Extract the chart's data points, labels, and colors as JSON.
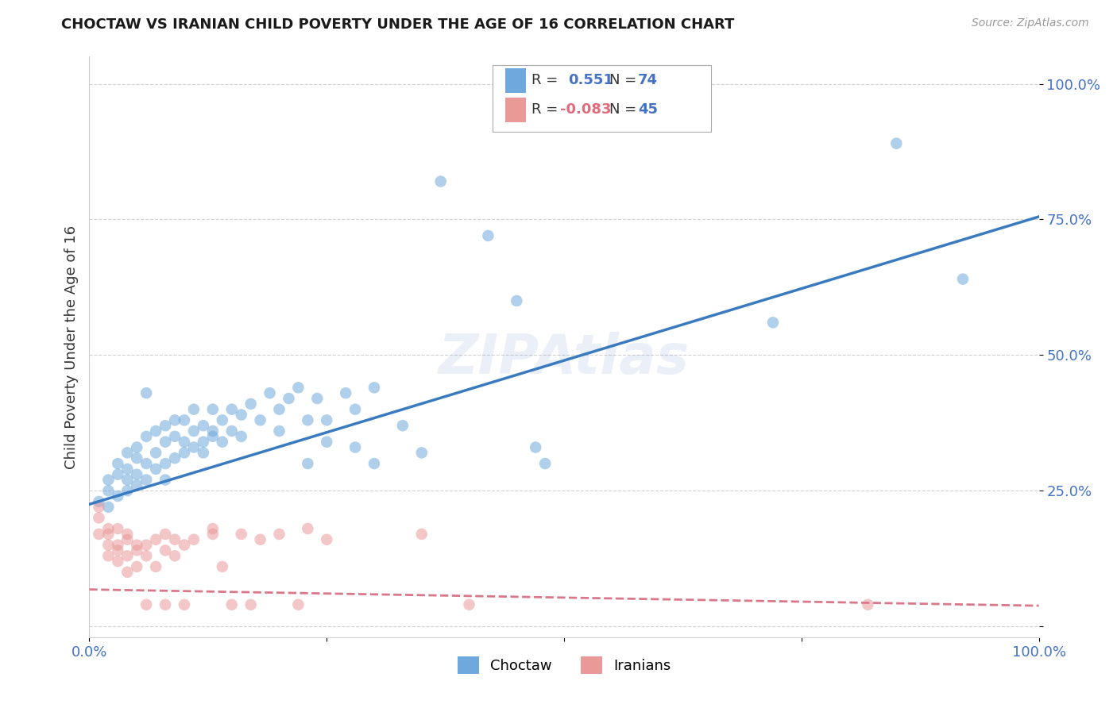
{
  "title": "CHOCTAW VS IRANIAN CHILD POVERTY UNDER THE AGE OF 16 CORRELATION CHART",
  "source": "Source: ZipAtlas.com",
  "ylabel": "Child Poverty Under the Age of 16",
  "xlim": [
    0,
    1.0
  ],
  "ylim": [
    -0.02,
    1.05
  ],
  "choctaw_color": "#6fa8dc",
  "iranian_color": "#ea9999",
  "choctaw_line_color": "#3a7abf",
  "iranian_line_color": "#d9788a",
  "legend_R_choctaw": "0.551",
  "legend_N_choctaw": "74",
  "legend_R_iranian": "-0.083",
  "legend_N_iranian": "45",
  "watermark": "ZIPAtlas",
  "background_color": "#ffffff",
  "grid_color": "#cccccc",
  "choctaw_points": [
    [
      0.01,
      0.23
    ],
    [
      0.02,
      0.27
    ],
    [
      0.02,
      0.22
    ],
    [
      0.02,
      0.25
    ],
    [
      0.03,
      0.3
    ],
    [
      0.03,
      0.24
    ],
    [
      0.03,
      0.28
    ],
    [
      0.04,
      0.27
    ],
    [
      0.04,
      0.32
    ],
    [
      0.04,
      0.25
    ],
    [
      0.04,
      0.29
    ],
    [
      0.05,
      0.28
    ],
    [
      0.05,
      0.33
    ],
    [
      0.05,
      0.26
    ],
    [
      0.05,
      0.31
    ],
    [
      0.06,
      0.3
    ],
    [
      0.06,
      0.35
    ],
    [
      0.06,
      0.27
    ],
    [
      0.06,
      0.43
    ],
    [
      0.07,
      0.32
    ],
    [
      0.07,
      0.36
    ],
    [
      0.07,
      0.29
    ],
    [
      0.08,
      0.34
    ],
    [
      0.08,
      0.3
    ],
    [
      0.08,
      0.37
    ],
    [
      0.08,
      0.27
    ],
    [
      0.09,
      0.35
    ],
    [
      0.09,
      0.31
    ],
    [
      0.09,
      0.38
    ],
    [
      0.1,
      0.34
    ],
    [
      0.1,
      0.38
    ],
    [
      0.1,
      0.32
    ],
    [
      0.11,
      0.36
    ],
    [
      0.11,
      0.33
    ],
    [
      0.11,
      0.4
    ],
    [
      0.12,
      0.37
    ],
    [
      0.12,
      0.34
    ],
    [
      0.12,
      0.32
    ],
    [
      0.13,
      0.36
    ],
    [
      0.13,
      0.4
    ],
    [
      0.13,
      0.35
    ],
    [
      0.14,
      0.38
    ],
    [
      0.14,
      0.34
    ],
    [
      0.15,
      0.4
    ],
    [
      0.15,
      0.36
    ],
    [
      0.16,
      0.39
    ],
    [
      0.16,
      0.35
    ],
    [
      0.17,
      0.41
    ],
    [
      0.18,
      0.38
    ],
    [
      0.19,
      0.43
    ],
    [
      0.2,
      0.4
    ],
    [
      0.2,
      0.36
    ],
    [
      0.21,
      0.42
    ],
    [
      0.22,
      0.44
    ],
    [
      0.23,
      0.38
    ],
    [
      0.23,
      0.3
    ],
    [
      0.24,
      0.42
    ],
    [
      0.25,
      0.38
    ],
    [
      0.25,
      0.34
    ],
    [
      0.27,
      0.43
    ],
    [
      0.28,
      0.33
    ],
    [
      0.28,
      0.4
    ],
    [
      0.3,
      0.44
    ],
    [
      0.3,
      0.3
    ],
    [
      0.33,
      0.37
    ],
    [
      0.35,
      0.32
    ],
    [
      0.37,
      0.82
    ],
    [
      0.42,
      0.72
    ],
    [
      0.45,
      0.6
    ],
    [
      0.47,
      0.33
    ],
    [
      0.48,
      0.3
    ],
    [
      0.72,
      0.56
    ],
    [
      0.85,
      0.89
    ],
    [
      0.92,
      0.64
    ]
  ],
  "iranian_points": [
    [
      0.01,
      0.17
    ],
    [
      0.01,
      0.2
    ],
    [
      0.01,
      0.22
    ],
    [
      0.02,
      0.15
    ],
    [
      0.02,
      0.18
    ],
    [
      0.02,
      0.13
    ],
    [
      0.02,
      0.17
    ],
    [
      0.03,
      0.15
    ],
    [
      0.03,
      0.18
    ],
    [
      0.03,
      0.12
    ],
    [
      0.03,
      0.14
    ],
    [
      0.04,
      0.16
    ],
    [
      0.04,
      0.13
    ],
    [
      0.04,
      0.1
    ],
    [
      0.04,
      0.17
    ],
    [
      0.05,
      0.14
    ],
    [
      0.05,
      0.11
    ],
    [
      0.05,
      0.15
    ],
    [
      0.06,
      0.13
    ],
    [
      0.06,
      0.04
    ],
    [
      0.06,
      0.15
    ],
    [
      0.07,
      0.16
    ],
    [
      0.07,
      0.11
    ],
    [
      0.08,
      0.14
    ],
    [
      0.08,
      0.04
    ],
    [
      0.08,
      0.17
    ],
    [
      0.09,
      0.13
    ],
    [
      0.09,
      0.16
    ],
    [
      0.1,
      0.15
    ],
    [
      0.1,
      0.04
    ],
    [
      0.11,
      0.16
    ],
    [
      0.13,
      0.17
    ],
    [
      0.13,
      0.18
    ],
    [
      0.14,
      0.11
    ],
    [
      0.15,
      0.04
    ],
    [
      0.16,
      0.17
    ],
    [
      0.17,
      0.04
    ],
    [
      0.18,
      0.16
    ],
    [
      0.2,
      0.17
    ],
    [
      0.22,
      0.04
    ],
    [
      0.23,
      0.18
    ],
    [
      0.25,
      0.16
    ],
    [
      0.35,
      0.17
    ],
    [
      0.4,
      0.04
    ],
    [
      0.82,
      0.04
    ]
  ],
  "choctaw_trendline": [
    [
      0.0,
      0.225
    ],
    [
      1.0,
      0.755
    ]
  ],
  "iranian_trendline": [
    [
      0.0,
      0.068
    ],
    [
      1.0,
      0.038
    ]
  ]
}
